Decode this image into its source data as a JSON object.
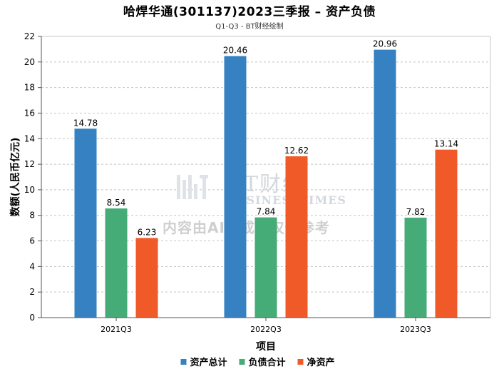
{
  "chart_data": {
    "type": "bar",
    "title": "哈焊华通(301137)2023三季报 – 资产负债",
    "subtitle": "Q1-Q3 - BT财经绘制",
    "xlabel": "项目",
    "ylabel": "数额(人民币亿元)",
    "ylim": [
      0,
      22
    ],
    "ytick_step": 2,
    "grid": true,
    "legend_position": "bottom",
    "categories": [
      "2021Q3",
      "2022Q3",
      "2023Q3"
    ],
    "series": [
      {
        "name": "资产总计",
        "color": "#3581c2",
        "values": [
          14.78,
          20.46,
          20.96
        ]
      },
      {
        "name": "负债合计",
        "color": "#45ab77",
        "values": [
          8.54,
          7.84,
          7.82
        ]
      },
      {
        "name": "净资产",
        "color": "#f05a28",
        "values": [
          6.23,
          12.62,
          13.14
        ]
      }
    ]
  },
  "watermark": {
    "logo_text": "BT财经",
    "logo_subtext": "BUSINESSTIMES",
    "note": "内容由AI生成，仅供参考"
  }
}
